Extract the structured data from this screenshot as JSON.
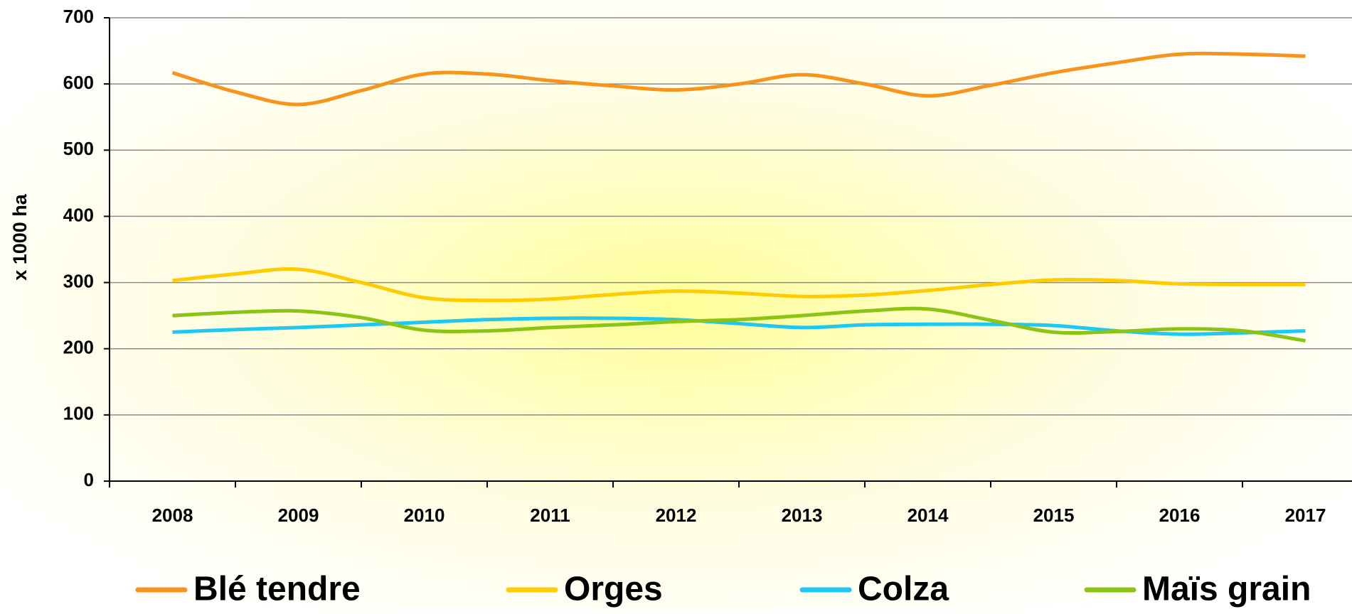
{
  "chart_data": {
    "type": "line",
    "y_label": "x 1000 ha",
    "categories": [
      "2008",
      null,
      "2009",
      null,
      "2010",
      null,
      "2011",
      null,
      "2012",
      null,
      "2013",
      null,
      "2014",
      null,
      "2015",
      null,
      "2016",
      null,
      "2017"
    ],
    "series": [
      {
        "name": "Blé tendre",
        "color": "#f7941d",
        "values": [
          617,
          588,
          569,
          590,
          615,
          615,
          605,
          597,
          591,
          600,
          614,
          600,
          582,
          598,
          617,
          632,
          645,
          645,
          642
        ]
      },
      {
        "name": "Orges",
        "color": "#ffcc00",
        "values": [
          303,
          313,
          320,
          300,
          277,
          273,
          275,
          282,
          287,
          284,
          279,
          281,
          288,
          297,
          304,
          303,
          298,
          297,
          297
        ]
      },
      {
        "name": "Colza",
        "color": "#1ec8f0",
        "values": [
          225,
          229,
          232,
          236,
          240,
          244,
          246,
          246,
          244,
          238,
          232,
          236,
          237,
          237,
          235,
          227,
          222,
          224,
          227
        ]
      },
      {
        "name": "Maïs grain",
        "color": "#8cc314",
        "values": [
          250,
          255,
          257,
          247,
          228,
          227,
          232,
          236,
          241,
          244,
          250,
          257,
          260,
          243,
          225,
          226,
          230,
          227,
          212
        ]
      }
    ],
    "ylim": [
      0,
      700
    ],
    "yticks": [
      0,
      100,
      200,
      300,
      400,
      500,
      600,
      700
    ],
    "grid": true,
    "legend": "bottom"
  }
}
